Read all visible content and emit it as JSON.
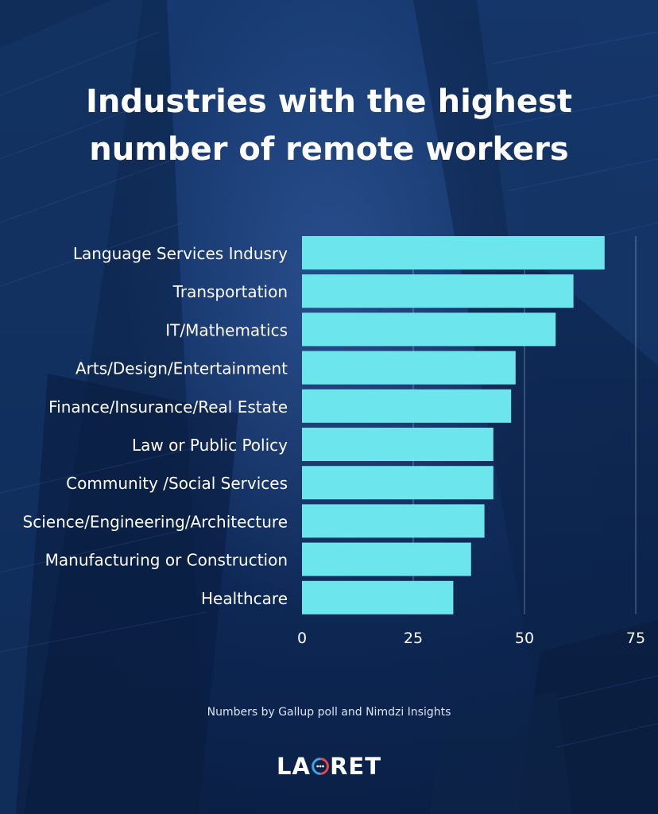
{
  "title_lines": [
    "Industries with the highest",
    "number of remote workers"
  ],
  "source_text": "Numbers by Gallup poll and Nimdzi Insights",
  "logo": {
    "text": "LAORET",
    "left_text": "LA",
    "right_text": "RET",
    "mark_icon": "circular-arrows-icon"
  },
  "colors": {
    "bar": "#6ce6ec",
    "text": "#ffffff",
    "grid": "rgba(255,255,255,0.35)",
    "logo_red": "#e8474d",
    "logo_blue": "#3aa7e6"
  },
  "chart_data": {
    "type": "bar",
    "orientation": "horizontal",
    "categories": [
      "Language Services Indusry",
      "Transportation",
      "IT/Mathematics",
      "Arts/Design/Entertainment",
      "Finance/Insurance/Real Estate",
      "Law or Public Policy",
      "Community /Social Services",
      "Science/Engineering/Architecture",
      "Manufacturing or Construction",
      "Healthcare"
    ],
    "values": [
      68,
      61,
      57,
      48,
      47,
      43,
      43,
      41,
      38,
      34
    ],
    "x_ticks": [
      0,
      25,
      50,
      75
    ],
    "x_tick_labels": [
      "0",
      "25",
      "50",
      "75"
    ],
    "xlim": [
      0,
      75
    ],
    "grid": "vertical",
    "title": "Industries with the highest number of remote workers",
    "xlabel": "",
    "ylabel": ""
  }
}
